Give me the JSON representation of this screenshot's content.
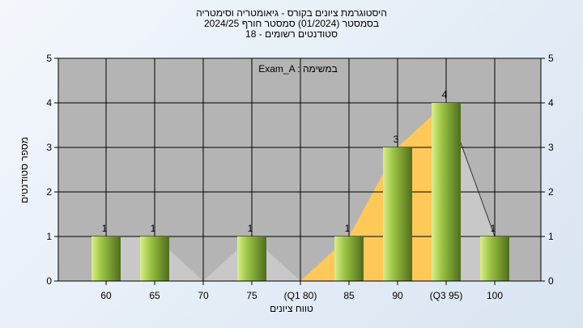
{
  "chart_data": {
    "type": "bar",
    "title_lines": [
      "היסטוגרמת ציונים בקורס - גיאומטריה וסימטריה",
      "בסמסטר  (01/2024)  סמסטר חורף 2024/25",
      "סטודנטים רשומים - 18"
    ],
    "xlabel": "טווח ציונים",
    "ylabel": "מספר סטודנטים",
    "ylim": [
      0,
      5
    ],
    "yticks": [
      0,
      1,
      2,
      3,
      4,
      5
    ],
    "categories": [
      "60",
      "65",
      "70",
      "75",
      "(Q1 80)",
      "85",
      "90",
      "(Q3 95)",
      "100"
    ],
    "values": [
      1,
      1,
      0,
      1,
      0,
      1,
      3,
      4,
      1
    ],
    "value_labels": [
      "1",
      "1",
      "",
      "1",
      "",
      "1",
      "3",
      "4",
      "1"
    ],
    "legend": "Exam_A : במשימה",
    "quartile_band": {
      "from": "(Q1 80)",
      "to": "(Q3 95)"
    },
    "colors": {
      "plot_bg": "#b4b4b4",
      "bar_light": "#d9ef8a",
      "bar_mid": "#9cc443",
      "bar_dark": "#4f6d1c",
      "area_gray": "#c8c8c8",
      "area_orange": "#ffc95a",
      "grid": "#000000"
    }
  }
}
